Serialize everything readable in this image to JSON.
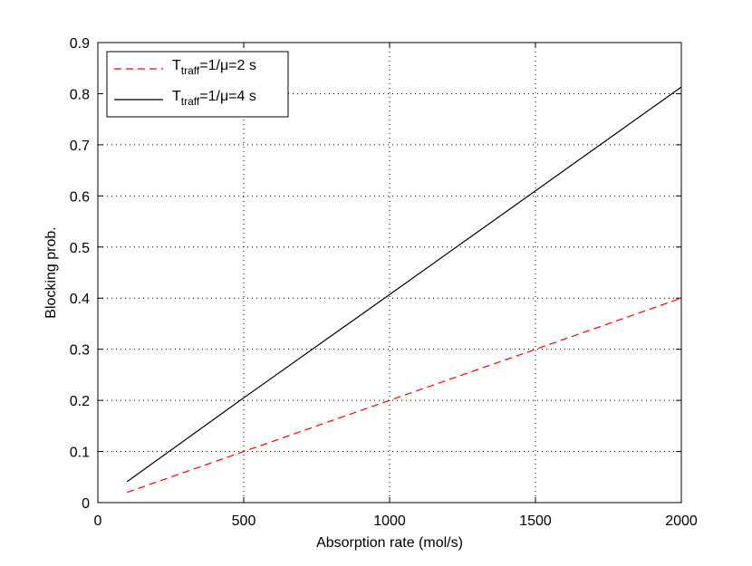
{
  "chart_data": {
    "type": "line",
    "title": "",
    "xlabel": "Absorption rate (mol/s)",
    "ylabel": "Blocking prob.",
    "xlim": [
      0,
      2000
    ],
    "ylim": [
      0,
      0.9
    ],
    "xticks": [
      0,
      500,
      1000,
      1500,
      2000
    ],
    "xtick_labels": [
      "0",
      "500",
      "1000",
      "1500",
      "2000"
    ],
    "yticks": [
      0,
      0.1,
      0.2,
      0.3,
      0.4,
      0.5,
      0.6,
      0.7,
      0.8,
      0.9
    ],
    "ytick_labels": [
      "0",
      "0.1",
      "0.2",
      "0.3",
      "0.4",
      "0.5",
      "0.6",
      "0.7",
      "0.8",
      "0.9"
    ],
    "grid": true,
    "legend_position": "top-left",
    "series": [
      {
        "name": "T_traff=1/μ=2 s",
        "legend": {
          "base": "T",
          "sub": "traff",
          "rest": "=1/μ=2 s"
        },
        "color": "#ff0000",
        "style": "dashed",
        "x": [
          100,
          500,
          1000,
          1500,
          2000
        ],
        "y": [
          0.02,
          0.1,
          0.2,
          0.3,
          0.4
        ]
      },
      {
        "name": "T_traff=1/μ=4 s",
        "legend": {
          "base": "T",
          "sub": "traff",
          "rest": "=1/μ=4 s"
        },
        "color": "#000000",
        "style": "solid",
        "x": [
          100,
          500,
          1000,
          1500,
          2000
        ],
        "y": [
          0.041,
          0.205,
          0.407,
          0.61,
          0.813
        ]
      }
    ]
  }
}
